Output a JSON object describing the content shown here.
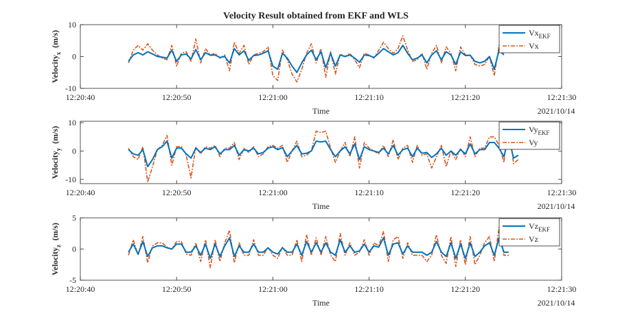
{
  "figure_title": "Velocity Result obtained from EKF and WLS",
  "colors": {
    "ekf": "#0072BD",
    "wls": "#D95319",
    "axis": "#262626"
  },
  "chart_data": [
    {
      "type": "line",
      "ylabel_main": "Velocity",
      "ylabel_sub": "x",
      "ylabel_unit": "(m/s)",
      "xlabel": "Time",
      "date_label": "2021/10/14",
      "xlim": [
        "12:20:40",
        "12:21:30"
      ],
      "ylim": [
        -10,
        10
      ],
      "x_ticks": [
        "12:20:40",
        "12:20:50",
        "12:21:00",
        "12:21:10",
        "12:21:20",
        "12:21:30"
      ],
      "y_ticks": [
        "10",
        "0",
        "-10"
      ],
      "legend": {
        "position": "top-right",
        "entries": [
          {
            "base": "Vx",
            "sub": "EKF"
          },
          {
            "base": "Vx",
            "sub": ""
          }
        ]
      },
      "x_start": "12:20:45",
      "x_step_s": 0.5,
      "series": [
        {
          "name": "Vx_EKF",
          "values": [
            -1.5,
            0.5,
            1.2,
            0.5,
            1.5,
            0.8,
            0,
            -0.2,
            -0.5,
            2,
            -1.5,
            0.5,
            0.8,
            -0.8,
            2.2,
            -1,
            1.2,
            0.4,
            0.5,
            -0.3,
            0,
            -2,
            2.5,
            0.5,
            1.8,
            -1.2,
            0.3,
            0.5,
            1,
            1.8,
            -3,
            -4,
            1,
            -0.5,
            -3,
            -5,
            -2,
            0.5,
            2,
            -1,
            1.5,
            -3.5,
            1,
            -3,
            0.5,
            0,
            0.5,
            -0.5,
            -1.8,
            0.5,
            0.3,
            -0.3,
            1,
            2.5,
            1.5,
            0.5,
            1.2,
            3.5,
            1,
            -1,
            -0.5,
            0.5,
            -2,
            0.5,
            1.8,
            -1,
            1.5,
            0.5,
            -2.5,
            1.5,
            0.3,
            0.4,
            -1.5,
            -2,
            -1.5,
            0,
            -4,
            2,
            0.5
          ]
        },
        {
          "name": "Vx",
          "values": [
            -2,
            2,
            3.5,
            2,
            4,
            2,
            0.5,
            -0.5,
            -1,
            3.5,
            -3,
            1,
            1.5,
            -1.5,
            5.5,
            -2,
            2.5,
            0.5,
            1,
            -0.5,
            0.5,
            -4.5,
            4.5,
            1,
            3.5,
            -2.5,
            0.5,
            1,
            1.5,
            3,
            -6,
            -7.5,
            2,
            -1,
            -5.5,
            -8,
            -4,
            1,
            4,
            -2,
            2.5,
            -6.5,
            1.5,
            -5.5,
            0.8,
            0,
            1,
            -1,
            -3.5,
            1,
            0.5,
            -0.5,
            2,
            4.5,
            2.5,
            1,
            2.5,
            6.5,
            2,
            -1.5,
            -1,
            1,
            -4,
            1,
            3.5,
            -2,
            3,
            1,
            -4.5,
            3,
            0.5,
            0.5,
            -2.5,
            -3,
            -2.5,
            0,
            -6,
            3.5,
            1
          ]
        }
      ]
    },
    {
      "type": "line",
      "ylabel_main": "Velocity",
      "ylabel_sub": "y",
      "ylabel_unit": "(m/s)",
      "xlabel": "Time",
      "date_label": "2021/10/14",
      "xlim": [
        "12:20:40",
        "12:21:30"
      ],
      "ylim": [
        -11.5,
        10.5
      ],
      "x_ticks": [
        "12:20:40",
        "12:20:50",
        "12:21:00",
        "12:21:10",
        "12:21:20",
        "12:21:30"
      ],
      "y_ticks": [
        "10",
        "0",
        "-10"
      ],
      "legend": {
        "position": "top-right",
        "entries": [
          {
            "base": "Vy",
            "sub": "EKF"
          },
          {
            "base": "Vy",
            "sub": ""
          }
        ]
      },
      "x_start": "12:20:45",
      "x_step_s": 0.5,
      "series": [
        {
          "name": "Vy_EKF",
          "values": [
            0.5,
            -1,
            -1.5,
            0.5,
            -5.5,
            -3,
            0.5,
            1.5,
            3.5,
            -2.5,
            1,
            1,
            -1,
            -2.5,
            1,
            -0.5,
            1,
            0.5,
            1.5,
            -1,
            0.5,
            0.5,
            2,
            -1.5,
            0.5,
            0,
            1,
            -1,
            -0.5,
            1,
            1.5,
            0.5,
            1.2,
            -2,
            0,
            2,
            -1,
            -0.8,
            0,
            3.5,
            3.2,
            3.5,
            0.5,
            -2,
            0,
            1.5,
            -1,
            2.5,
            -3,
            1.5,
            0.5,
            0,
            -0.5,
            1,
            -1,
            2,
            -1.5,
            0.5,
            1,
            -2,
            1,
            -0.8,
            -0.5,
            -2.3,
            -1,
            1,
            -1.5,
            0,
            -1.5,
            0.5,
            -1,
            2.5,
            -1,
            0.5,
            0.5,
            3,
            3,
            1,
            -2,
            5,
            -2.5,
            -1.5
          ]
        },
        {
          "name": "Vy",
          "values": [
            1,
            -2,
            -3,
            1.5,
            -11,
            -5.5,
            0.5,
            2,
            5.5,
            -5,
            1.5,
            1.5,
            -1.5,
            -9.5,
            1.5,
            -1,
            1.5,
            1,
            2,
            -2,
            1,
            1,
            3,
            -3,
            1,
            -0.5,
            1.5,
            -2,
            -1,
            1.5,
            2,
            1,
            2,
            -4,
            0,
            3.5,
            -2,
            -1.5,
            0,
            7,
            6.5,
            7,
            1,
            -4,
            0,
            3,
            -2,
            5,
            -6,
            3,
            1,
            0,
            -1,
            2,
            -2,
            4,
            -3,
            1,
            2,
            -4,
            2,
            -1.5,
            -1,
            -6,
            -2,
            2,
            -5.5,
            0,
            -3,
            1,
            -2,
            5,
            -2,
            1,
            1,
            5,
            5,
            2,
            -4,
            10,
            -4.5,
            -3
          ]
        }
      ]
    },
    {
      "type": "line",
      "ylabel_main": "Velocity",
      "ylabel_sub": "z",
      "ylabel_unit": "(m/s)",
      "xlabel": "Time",
      "date_label": "2021/10/14",
      "xlim": [
        "12:20:40",
        "12:21:30"
      ],
      "ylim": [
        -5,
        5
      ],
      "x_ticks": [
        "12:20:40",
        "12:20:50",
        "12:21:00",
        "12:21:10",
        "12:21:20",
        "12:21:30"
      ],
      "y_ticks": [
        "5",
        "0",
        "-5"
      ],
      "legend": {
        "position": "top-right",
        "entries": [
          {
            "base": "Vz",
            "sub": "EKF"
          },
          {
            "base": "Vz",
            "sub": ""
          }
        ]
      },
      "x_start": "12:20:45",
      "x_step_s": 0.5,
      "series": [
        {
          "name": "Vz_EKF",
          "values": [
            -0.5,
            0.8,
            -0.8,
            1.2,
            -1.2,
            0.2,
            0.5,
            0.5,
            0.2,
            0,
            0.8,
            0.8,
            -0.5,
            -0.5,
            0.5,
            -1,
            0.8,
            -1.5,
            0.8,
            -1.2,
            0.5,
            1.8,
            -1.2,
            0.5,
            -0.5,
            -0.5,
            0.8,
            -0.5,
            -0.5,
            0.2,
            -0.5,
            -0.8,
            0.2,
            -0.5,
            -0.5,
            0.8,
            -1,
            1.2,
            -0.5,
            1,
            -0.5,
            1,
            -0.5,
            -1,
            1.5,
            -0.5,
            0.5,
            -0.5,
            -0.3,
            0.8,
            -0.5,
            0.5,
            0.3,
            1.8,
            -1,
            0.8,
            1,
            -0.8,
            0.5,
            -0.5,
            -0.5,
            -0.5,
            -1,
            -0.5,
            1.2,
            -0.5,
            -1.2,
            1,
            -1.5,
            0.8,
            -1.5,
            1,
            -1.2,
            -0.5,
            0.5,
            1,
            -1,
            1.8,
            -0.5,
            -0.5
          ]
        },
        {
          "name": "Vz",
          "values": [
            -1,
            1.5,
            -1,
            2,
            -2.2,
            0.5,
            1,
            1,
            0.3,
            0,
            1.2,
            1.2,
            -0.8,
            -1,
            1,
            -2,
            1.5,
            -3,
            1.5,
            -2,
            1,
            3,
            -2.2,
            1,
            -1,
            -1,
            1.5,
            -1,
            -1,
            0.3,
            -1,
            -1.5,
            0.3,
            -1,
            -1,
            1.5,
            -2,
            2.3,
            -1,
            1.8,
            -1,
            2,
            -1,
            -2,
            2.5,
            -1,
            1,
            -1,
            -0.5,
            1.5,
            -1,
            1,
            0.5,
            2.8,
            -2,
            1.5,
            2,
            -1.5,
            1,
            -1,
            -1,
            -1,
            -2,
            -1,
            2.3,
            -1,
            -2.3,
            2,
            -2.8,
            1.5,
            -2.5,
            2,
            -2.5,
            -1,
            1,
            2,
            -2,
            3.5,
            -1,
            -1
          ]
        }
      ]
    }
  ]
}
